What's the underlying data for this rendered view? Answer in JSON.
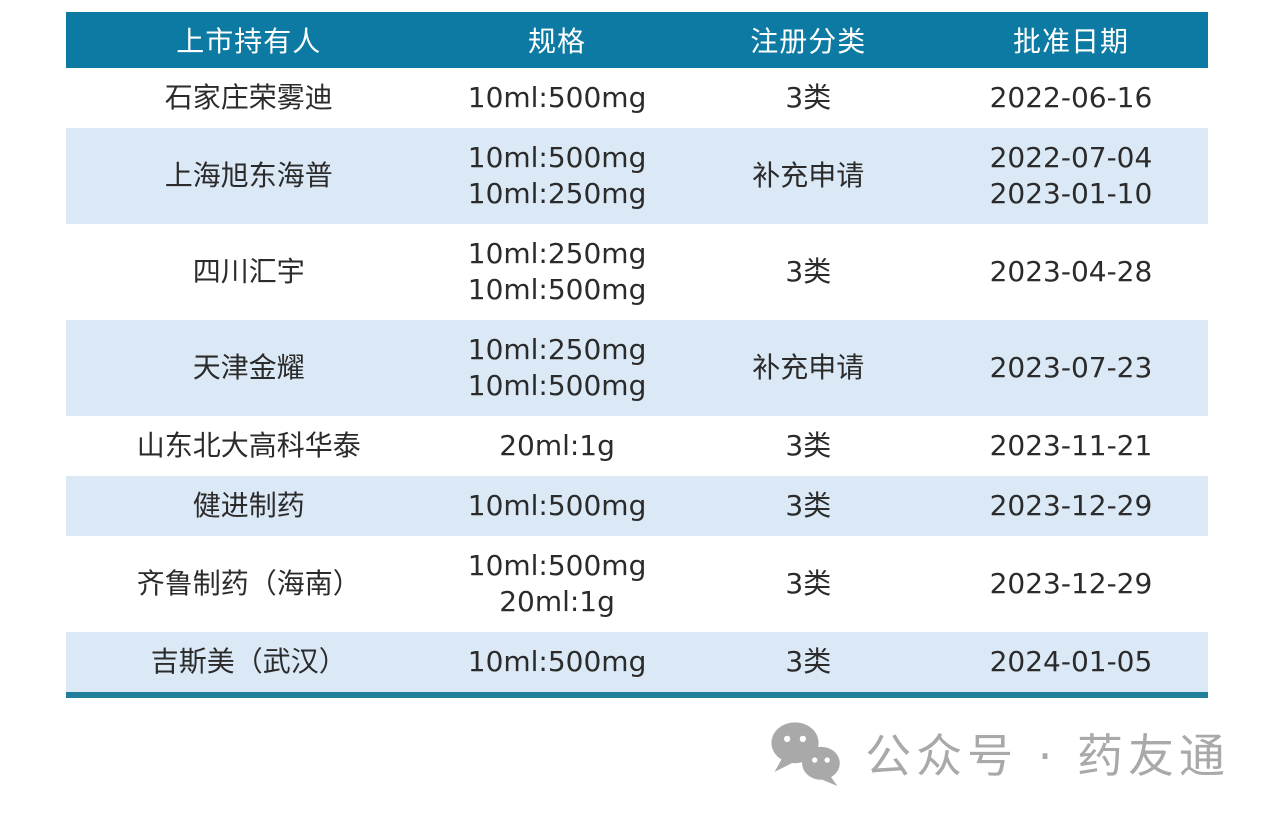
{
  "chart_data": {
    "type": "table",
    "columns": [
      {
        "key": "holder",
        "label": "上市持有人"
      },
      {
        "key": "spec",
        "label": "规格"
      },
      {
        "key": "category",
        "label": "注册分类"
      },
      {
        "key": "date",
        "label": "批准日期"
      }
    ],
    "rows": [
      {
        "holder": [
          "石家庄荣雾迪"
        ],
        "spec": [
          "10ml:500mg"
        ],
        "category": [
          "3类"
        ],
        "date": [
          "2022-06-16"
        ]
      },
      {
        "holder": [
          "上海旭东海普"
        ],
        "spec": [
          "10ml:500mg",
          "10ml:250mg"
        ],
        "category": [
          "补充申请"
        ],
        "date": [
          "2022-07-04",
          "2023-01-10"
        ]
      },
      {
        "holder": [
          "四川汇宇"
        ],
        "spec": [
          "10ml:250mg",
          "10ml:500mg"
        ],
        "category": [
          "3类"
        ],
        "date": [
          "2023-04-28"
        ]
      },
      {
        "holder": [
          "天津金耀"
        ],
        "spec": [
          "10ml:250mg",
          "10ml:500mg"
        ],
        "category": [
          "补充申请"
        ],
        "date": [
          "2023-07-23"
        ]
      },
      {
        "holder": [
          "山东北大高科华泰"
        ],
        "spec": [
          "20ml:1g"
        ],
        "category": [
          "3类"
        ],
        "date": [
          "2023-11-21"
        ]
      },
      {
        "holder": [
          "健进制药"
        ],
        "spec": [
          "10ml:500mg"
        ],
        "category": [
          "3类"
        ],
        "date": [
          "2023-12-29"
        ]
      },
      {
        "holder": [
          "齐鲁制药（海南）"
        ],
        "spec": [
          "10ml:500mg",
          "20ml:1g"
        ],
        "category": [
          "3类"
        ],
        "date": [
          "2023-12-29"
        ]
      },
      {
        "holder": [
          "吉斯美（武汉）"
        ],
        "spec": [
          "10ml:500mg"
        ],
        "category": [
          "3类"
        ],
        "date": [
          "2024-01-05"
        ]
      }
    ],
    "layout_hints": {
      "header_style": "solid teal band, white centered text",
      "zebra_striping": "odd rows white, even rows light blue",
      "bottom_rule": "thick teal line under last row"
    }
  },
  "colors": {
    "header_bg": "#0d7aa4",
    "header_text": "#ffffff",
    "row_bg": "#ffffff",
    "row_alt_bg": "#dbe9f6",
    "text": "#2b2b2b",
    "bottom_border": "#20809c",
    "watermark": "#a9a9a9"
  },
  "watermark": {
    "icon": "wechat-icon",
    "text": "公众号 · 药友通"
  }
}
